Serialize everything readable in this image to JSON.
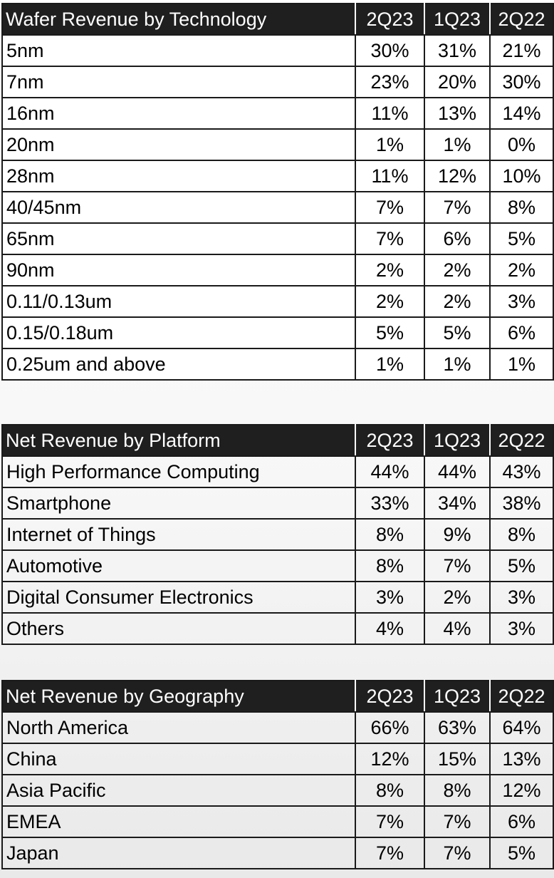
{
  "tables": [
    {
      "title": "Wafer Revenue by Technology",
      "periods": [
        "2Q23",
        "1Q23",
        "2Q22"
      ],
      "rows": [
        {
          "label": "5nm",
          "values": [
            "30%",
            "31%",
            "21%"
          ]
        },
        {
          "label": "7nm",
          "values": [
            "23%",
            "20%",
            "30%"
          ]
        },
        {
          "label": "16nm",
          "values": [
            "11%",
            "13%",
            "14%"
          ]
        },
        {
          "label": "20nm",
          "values": [
            "1%",
            "1%",
            "0%"
          ]
        },
        {
          "label": "28nm",
          "values": [
            "11%",
            "12%",
            "10%"
          ]
        },
        {
          "label": "40/45nm",
          "values": [
            "7%",
            "7%",
            "8%"
          ]
        },
        {
          "label": "65nm",
          "values": [
            "7%",
            "6%",
            "5%"
          ]
        },
        {
          "label": "90nm",
          "values": [
            "2%",
            "2%",
            "2%"
          ]
        },
        {
          "label": "0.11/0.13um",
          "values": [
            "2%",
            "2%",
            "3%"
          ]
        },
        {
          "label": "0.15/0.18um",
          "values": [
            "5%",
            "5%",
            "6%"
          ]
        },
        {
          "label": "0.25um and above",
          "values": [
            "1%",
            "1%",
            "1%"
          ]
        }
      ]
    },
    {
      "title": "Net Revenue by Platform",
      "periods": [
        "2Q23",
        "1Q23",
        "2Q22"
      ],
      "rows": [
        {
          "label": "High Performance Computing",
          "values": [
            "44%",
            "44%",
            "43%"
          ]
        },
        {
          "label": "Smartphone",
          "values": [
            "33%",
            "34%",
            "38%"
          ]
        },
        {
          "label": "Internet of Things",
          "values": [
            "8%",
            "9%",
            "8%"
          ]
        },
        {
          "label": "Automotive",
          "values": [
            "8%",
            "7%",
            "5%"
          ]
        },
        {
          "label": "Digital Consumer Electronics",
          "values": [
            "3%",
            "2%",
            "3%"
          ]
        },
        {
          "label": "Others",
          "values": [
            "4%",
            "4%",
            "3%"
          ]
        }
      ]
    },
    {
      "title": "Net Revenue by Geography",
      "periods": [
        "2Q23",
        "1Q23",
        "2Q22"
      ],
      "rows": [
        {
          "label": "North America",
          "values": [
            "66%",
            "63%",
            "64%"
          ]
        },
        {
          "label": "China",
          "values": [
            "12%",
            "15%",
            "13%"
          ]
        },
        {
          "label": "Asia Pacific",
          "values": [
            "8%",
            "8%",
            "12%"
          ]
        },
        {
          "label": "EMEA",
          "values": [
            "7%",
            "7%",
            "6%"
          ]
        },
        {
          "label": "Japan",
          "values": [
            "7%",
            "7%",
            "5%"
          ]
        }
      ]
    }
  ],
  "colors": {
    "header_bg": "#1f1f1f",
    "header_text": "#ffffff",
    "border": "#1a1a1a"
  }
}
